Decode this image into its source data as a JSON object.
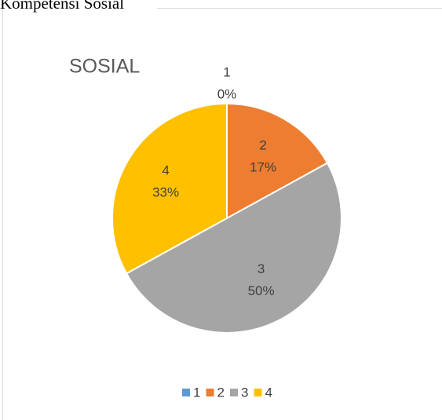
{
  "heading": "Kompetensi Sosial",
  "chart_data": {
    "type": "pie",
    "title": "SOSIAL",
    "categories": [
      "1",
      "2",
      "3",
      "4"
    ],
    "values": [
      0,
      17,
      50,
      33
    ],
    "value_labels": [
      "0%",
      "17%",
      "50%",
      "33%"
    ],
    "colors": [
      "#5b9bd5",
      "#ed7d31",
      "#a5a5a5",
      "#ffc000"
    ],
    "legend": "bottom"
  }
}
